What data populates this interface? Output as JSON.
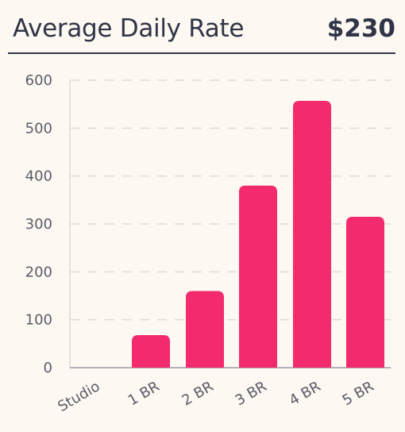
{
  "header": {
    "title": "Average Daily Rate",
    "value": "$230"
  },
  "colors": {
    "bar": "#f42a6e",
    "grid": "#dedbd5",
    "axis": "#9c9ea6",
    "text": "#5a5d68"
  },
  "chart_data": {
    "type": "bar",
    "title": "Average Daily Rate",
    "xlabel": "",
    "ylabel": "",
    "ylim": [
      0,
      600
    ],
    "yticks": [
      "0",
      "100",
      "200",
      "300",
      "400",
      "500",
      "600"
    ],
    "grid": true,
    "categories": [
      "Studio",
      "1 BR",
      "2 BR",
      "3 BR",
      "4 BR",
      "5 BR"
    ],
    "values": [
      0,
      68,
      160,
      380,
      557,
      315
    ]
  }
}
